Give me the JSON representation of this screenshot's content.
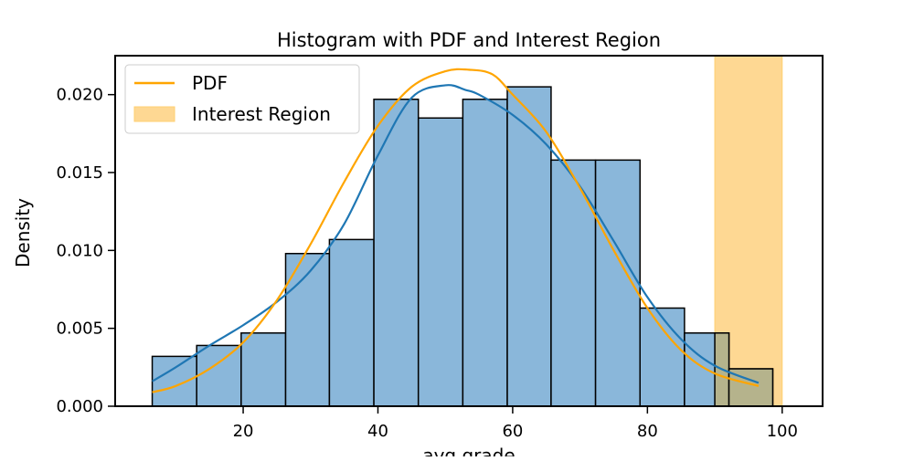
{
  "chart_data": {
    "type": "bar",
    "title": "Histogram with PDF and Interest Region",
    "xlabel": "avg grade",
    "ylabel": "Density",
    "xlim": [
      1,
      106
    ],
    "ylim": [
      0,
      0.0225
    ],
    "x_ticks": [
      {
        "value": 20,
        "label": "20"
      },
      {
        "value": 40,
        "label": "40"
      },
      {
        "value": 60,
        "label": "60"
      },
      {
        "value": 80,
        "label": "80"
      },
      {
        "value": 100,
        "label": "100"
      }
    ],
    "y_ticks": [
      {
        "value": 0,
        "label": "0.000"
      },
      {
        "value": 0.005,
        "label": "0.005"
      },
      {
        "value": 0.01,
        "label": "0.010"
      },
      {
        "value": 0.015,
        "label": "0.015"
      },
      {
        "value": 0.02,
        "label": "0.020"
      }
    ],
    "bins": [
      {
        "x0": 6.5,
        "x1": 13.1,
        "value": 0.0032
      },
      {
        "x0": 13.1,
        "x1": 19.7,
        "value": 0.0039
      },
      {
        "x0": 19.7,
        "x1": 26.3,
        "value": 0.0047
      },
      {
        "x0": 26.3,
        "x1": 32.8,
        "value": 0.0098
      },
      {
        "x0": 32.8,
        "x1": 39.4,
        "value": 0.0107
      },
      {
        "x0": 39.4,
        "x1": 46.0,
        "value": 0.0197
      },
      {
        "x0": 46.0,
        "x1": 52.6,
        "value": 0.0185
      },
      {
        "x0": 52.6,
        "x1": 59.2,
        "value": 0.0197
      },
      {
        "x0": 59.2,
        "x1": 65.7,
        "value": 0.0205
      },
      {
        "x0": 65.7,
        "x1": 72.3,
        "value": 0.0158
      },
      {
        "x0": 72.3,
        "x1": 78.9,
        "value": 0.0158
      },
      {
        "x0": 78.9,
        "x1": 85.5,
        "value": 0.0063
      },
      {
        "x0": 85.5,
        "x1": 92.1,
        "value": 0.0047
      },
      {
        "x0": 92.1,
        "x1": 98.6,
        "value": 0.0024
      }
    ],
    "kde": {
      "x": [
        6.5,
        10,
        15,
        20,
        25,
        30,
        35,
        40,
        45,
        50,
        53,
        55,
        60,
        65,
        70,
        75,
        80,
        85,
        90,
        96.5
      ],
      "y": [
        0.0016,
        0.0025,
        0.0039,
        0.0052,
        0.0067,
        0.0087,
        0.0117,
        0.0161,
        0.0198,
        0.0206,
        0.0203,
        0.02,
        0.0187,
        0.0168,
        0.0141,
        0.0106,
        0.007,
        0.0043,
        0.0026,
        0.0015
      ]
    },
    "series": [
      {
        "name": "PDF",
        "x": [
          6.5,
          10,
          15,
          20,
          25,
          30,
          35,
          40,
          45,
          50,
          53.5,
          57,
          60,
          65,
          70,
          75,
          80,
          85,
          90,
          96.5
        ],
        "values": [
          0.0009,
          0.0013,
          0.0024,
          0.0041,
          0.0068,
          0.0104,
          0.0144,
          0.018,
          0.0205,
          0.0215,
          0.0216,
          0.0213,
          0.02,
          0.0176,
          0.014,
          0.01,
          0.0063,
          0.0036,
          0.0021,
          0.0013
        ]
      }
    ],
    "interest_region": {
      "name": "Interest Region",
      "x0": 90,
      "x1": 100
    },
    "legend_position": "top-left",
    "grid": false,
    "colors": {
      "bar_fill": "#8ab7da",
      "bar_edge": "#000000",
      "kde": "#1f77b4",
      "pdf": "#ffa500",
      "region_fill": "#fed893",
      "region_edge": "#ffcf70",
      "overlap_fill": "#b5b38c"
    }
  }
}
